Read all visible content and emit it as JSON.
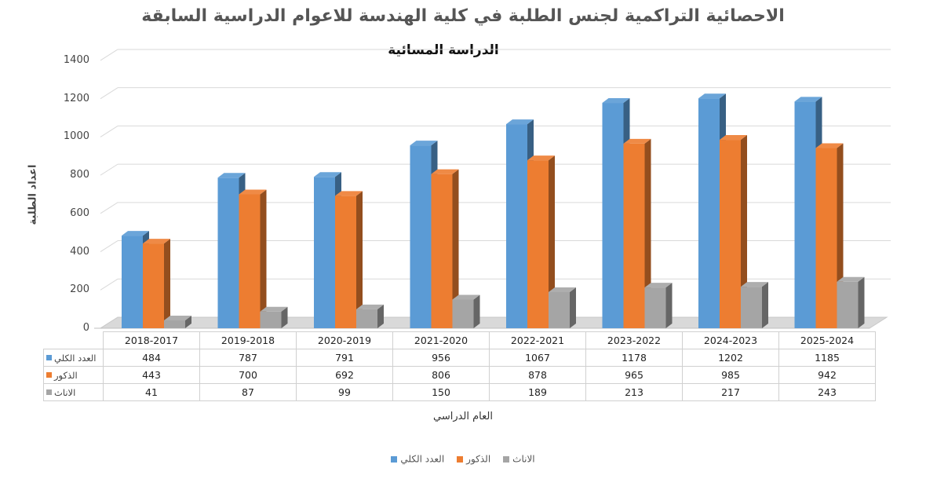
{
  "chart_data": {
    "type": "bar",
    "title": "الاحصائية التراكمية لجنس الطلبة في كلية الهندسة للاعوام الدراسية السابقة",
    "subtitle": "الدراسة المسائية",
    "xlabel": "العام الدراسي",
    "ylabel": "اعداد الطلبة",
    "ylim": [
      0,
      1400
    ],
    "yticks": [
      0,
      200,
      400,
      600,
      800,
      1000,
      1200,
      1400
    ],
    "grid": true,
    "legend_position": "bottom",
    "categories": [
      "2018-2017",
      "2019-2018",
      "2020-2019",
      "2021-2020",
      "2022-2021",
      "2023-2022",
      "2024-2023",
      "2025-2024"
    ],
    "series": [
      {
        "name": "العدد الكلي",
        "color": "#5B9BD5",
        "values": [
          484,
          787,
          791,
          956,
          1067,
          1178,
          1202,
          1185
        ]
      },
      {
        "name": "الذكور",
        "color": "#ED7D31",
        "values": [
          443,
          700,
          692,
          806,
          878,
          965,
          985,
          942
        ]
      },
      {
        "name": "الاناث",
        "color": "#A5A5A5",
        "values": [
          41,
          87,
          99,
          150,
          189,
          213,
          217,
          243
        ]
      }
    ]
  }
}
